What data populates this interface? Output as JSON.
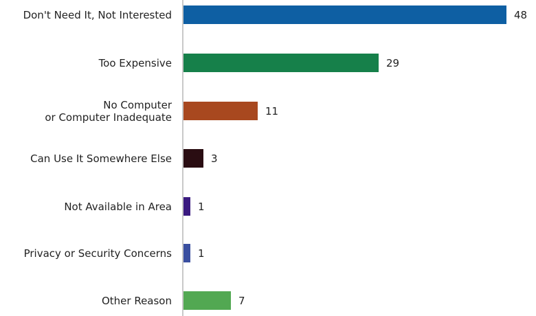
{
  "chart_data": {
    "type": "bar",
    "orientation": "horizontal",
    "title": "",
    "xlabel": "",
    "ylabel": "",
    "categories": [
      "Don't Need It, Not Interested",
      "Too Expensive",
      "No Computer\nor Computer Inadequate",
      "Can Use It Somewhere Else",
      "Not Available in Area",
      "Privacy or Security Concerns",
      "Other Reason"
    ],
    "values": [
      48,
      29,
      11,
      3,
      1,
      1,
      7
    ],
    "colors": [
      "#0e5fa3",
      "#16804a",
      "#a8481f",
      "#2a0d12",
      "#3a1a80",
      "#3a4fa0",
      "#52a852"
    ],
    "data_labels": [
      "48",
      "29",
      "11",
      "3",
      "1",
      "1",
      "7"
    ],
    "xlim": [
      0,
      50
    ],
    "grid": false,
    "legend": "none"
  }
}
